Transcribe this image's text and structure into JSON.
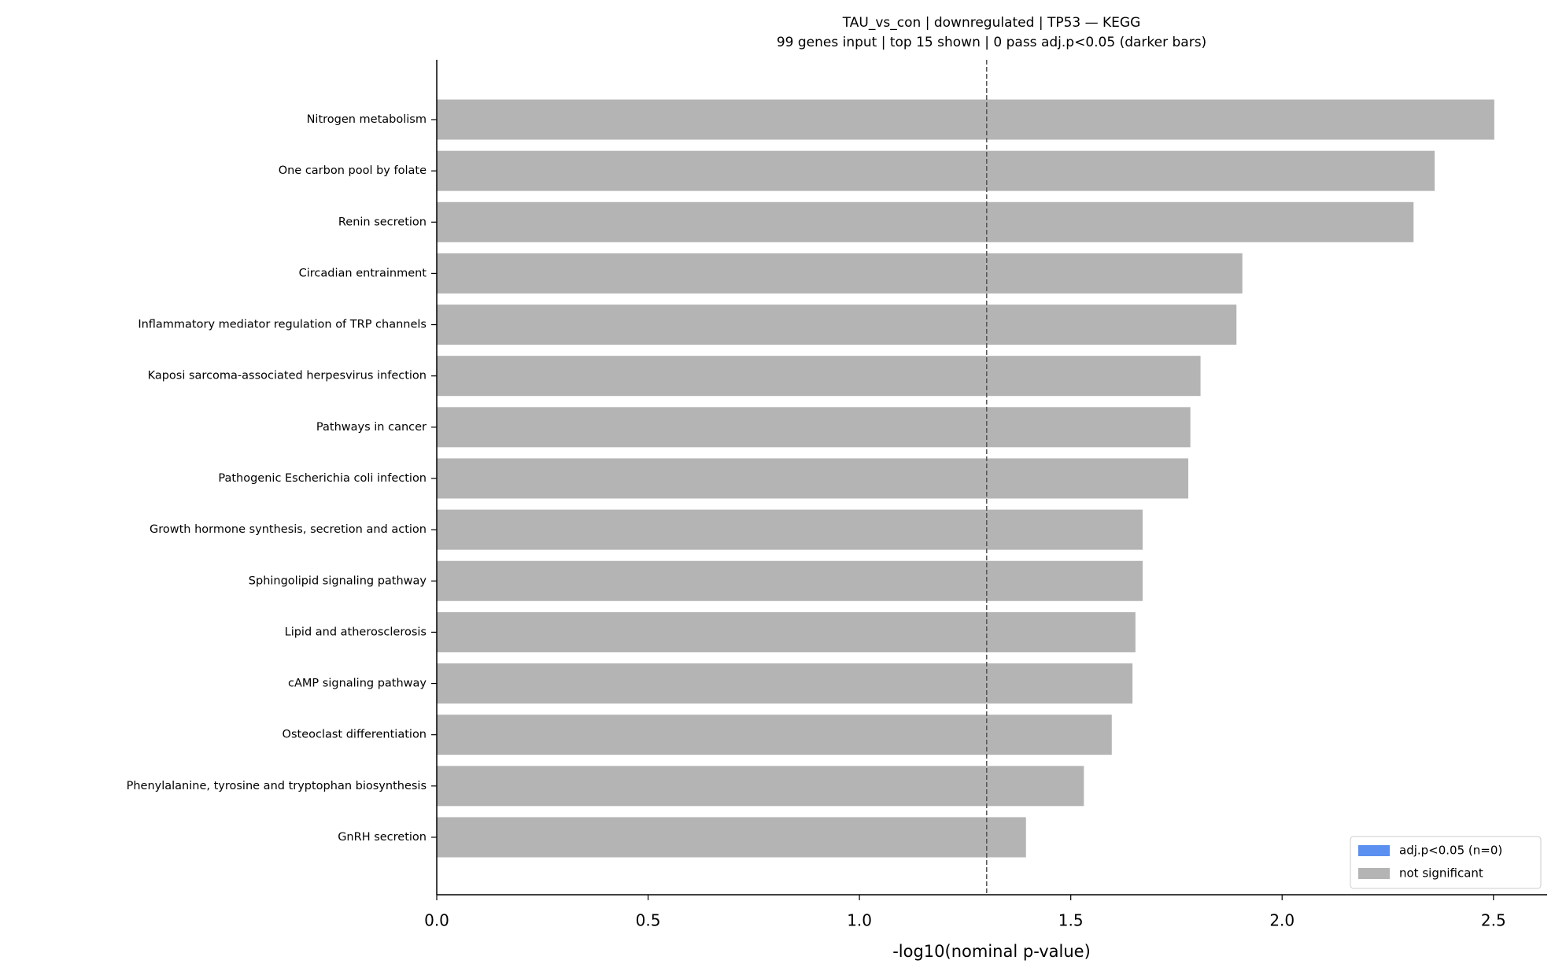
{
  "chart_data": {
    "type": "barh",
    "title": "TAU_vs_con | downregulated | TP53 — KEGG",
    "subtitle": "99 genes input  |  top 15 shown  |  0 pass adj.p<0.05 (darker bars)",
    "x_label": "-log10(nominal p-value)",
    "categories": [
      "Nitrogen metabolism",
      "One carbon pool by folate",
      "Renin secretion",
      "Circadian entrainment",
      "Inflammatory mediator regulation of TRP channels",
      "Kaposi sarcoma-associated herpesvirus infection",
      "Pathways in cancer",
      "Pathogenic Escherichia coli infection",
      "Growth hormone synthesis, secretion and action",
      "Sphingolipid signaling pathway",
      "Lipid and atherosclerosis",
      "cAMP signaling pathway",
      "Osteoclast differentiation",
      "Phenylalanine, tyrosine and tryptophan biosynthesis",
      "GnRH secretion"
    ],
    "values": [
      2.502,
      2.361,
      2.311,
      1.906,
      1.892,
      1.807,
      1.783,
      1.778,
      1.67,
      1.67,
      1.653,
      1.646,
      1.597,
      1.531,
      1.394
    ],
    "color": "#b4b4b4",
    "threshold": 1.301,
    "xlim": [
      0,
      2.627
    ],
    "xticks": [
      {
        "value": 0,
        "label": "0.0"
      },
      0.5,
      {
        "value": 1,
        "label": "1.0"
      },
      1.5,
      {
        "value": 2,
        "label": "2.0"
      },
      2.5
    ],
    "legend": [
      {
        "name": "adj.p<0.05 (n=0)",
        "color": "#5b8ff0"
      },
      {
        "name": "not significant",
        "color": "#b4b4b4"
      }
    ],
    "legend_position": "lower right"
  }
}
